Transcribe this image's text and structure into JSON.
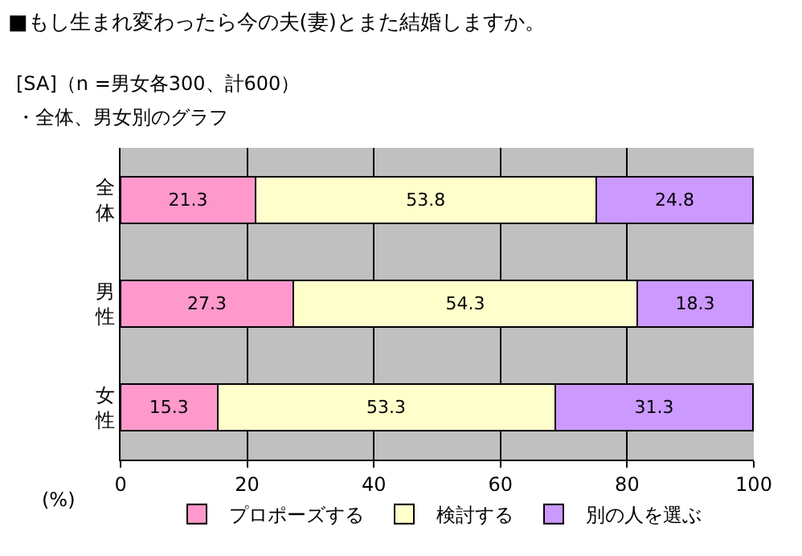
{
  "chart_data": {
    "type": "bar",
    "orientation": "horizontal",
    "stacked": true,
    "title": "■もし生まれ変わったら今の夫(妻)とまた結婚しますか。",
    "subtitle": "[SA]（n =男女各300、計600）",
    "annotations": [
      "・全体、男女別のグラフ",
      "(%)"
    ],
    "categories": [
      "全体",
      "男性",
      "女性"
    ],
    "series": [
      {
        "name": "プロポーズする",
        "color": "#ff99cc",
        "values": [
          21.3,
          27.3,
          15.3
        ]
      },
      {
        "name": "検討する",
        "color": "#ffffcc",
        "values": [
          53.8,
          54.3,
          53.3
        ]
      },
      {
        "name": "別の人を選ぶ",
        "color": "#cc99ff",
        "values": [
          24.8,
          18.3,
          31.3
        ]
      }
    ],
    "xlim": [
      0,
      100
    ],
    "xticks": [
      0,
      20,
      40,
      60,
      80,
      100
    ],
    "grid": "x",
    "legend": "bottom",
    "data_labels": true
  }
}
